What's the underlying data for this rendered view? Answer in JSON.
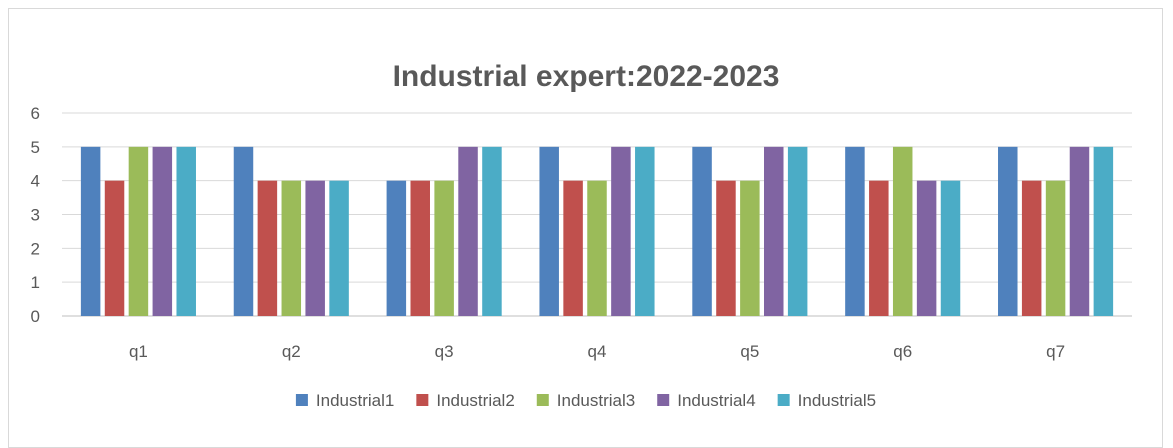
{
  "chart_data": {
    "type": "bar",
    "title": "Industrial expert:2022-2023",
    "categories": [
      "q1",
      "q2",
      "q3",
      "q4",
      "q5",
      "q6",
      "q7"
    ],
    "series": [
      {
        "name": "Industrial1",
        "color": "#4f81bd",
        "values": [
          5,
          5,
          4,
          5,
          5,
          5,
          5
        ]
      },
      {
        "name": "Industrial2",
        "color": "#c0504d",
        "values": [
          4,
          4,
          4,
          4,
          4,
          4,
          4
        ]
      },
      {
        "name": "Industrial3",
        "color": "#9bbb59",
        "values": [
          5,
          4,
          4,
          4,
          4,
          5,
          4
        ]
      },
      {
        "name": "Industrial4",
        "color": "#8064a2",
        "values": [
          5,
          4,
          5,
          5,
          5,
          4,
          5
        ]
      },
      {
        "name": "Industrial5",
        "color": "#4bacc6",
        "values": [
          5,
          4,
          5,
          5,
          5,
          4,
          5
        ]
      }
    ],
    "ylim": [
      0,
      6
    ],
    "yticks": [
      0,
      1,
      2,
      3,
      4,
      5,
      6
    ],
    "grid": true,
    "legend_position": "bottom",
    "xlabel": "",
    "ylabel": ""
  }
}
